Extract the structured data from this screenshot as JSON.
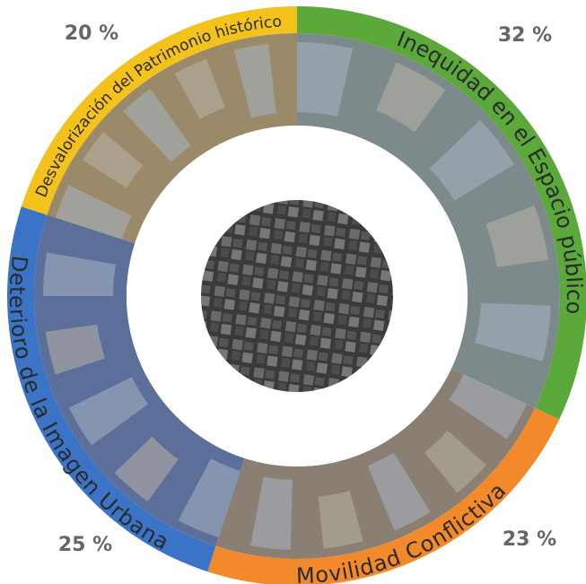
{
  "chart_data": {
    "type": "donut",
    "categories": [
      "Inequidad en el Espacio público",
      "Movilidad Conflictiva",
      "Deterioro de la Imagen Urbana",
      "Desvalorización del Patrimonio histórico"
    ],
    "values": [
      32,
      23,
      25,
      20
    ],
    "value_labels": [
      "32 %",
      "23 %",
      "25 %",
      "20 %"
    ],
    "colors": [
      "#5ba83b",
      "#f28a2b",
      "#3b74c6",
      "#f3c21b"
    ]
  }
}
